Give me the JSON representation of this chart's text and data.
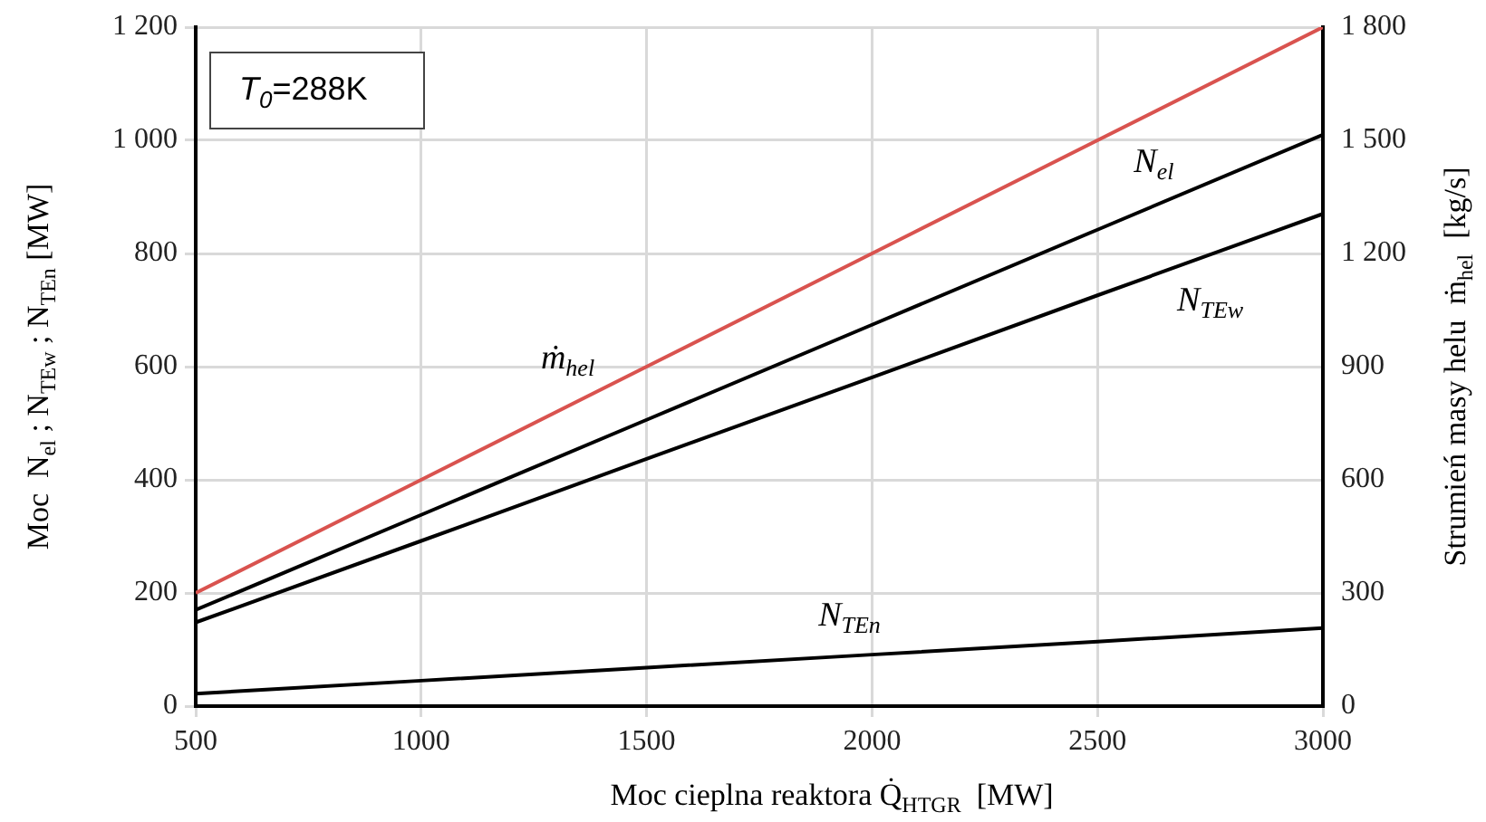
{
  "chart_data": {
    "type": "line",
    "xlabel": "Moc cieplna reaktora Q̇$_{HTGR}$  [MW]",
    "ylabel": "Moc  N$_{el}$ ; N$_{TEw}$ ; N$_{TEn}$ [MW]",
    "y2label": "Strumień masy helu  ṁ$_{hel}$  [kg/s]",
    "x": [
      500,
      1000,
      1500,
      2000,
      2500,
      3000
    ],
    "series": [
      {
        "name": "ṁ$_{hel}$",
        "color": "#d9534f",
        "axis": "y2",
        "values": [
          300,
          600,
          900,
          1200,
          1500,
          1800
        ]
      },
      {
        "name": "N$_{el}$",
        "color": "#000000",
        "values": [
          170,
          338,
          506,
          674,
          842,
          1010
        ]
      },
      {
        "name": "N$_{TEw}$",
        "color": "#000000",
        "values": [
          148,
          292,
          437,
          581,
          726,
          870
        ]
      },
      {
        "name": "N$_{TEn}$",
        "color": "#000000",
        "values": [
          22,
          45,
          68,
          91,
          114,
          138
        ]
      }
    ],
    "xlim": [
      500,
      3000
    ],
    "xticks": [
      500,
      1000,
      1500,
      2000,
      2500,
      3000
    ],
    "ylim": [
      0,
      1200
    ],
    "yticks": [
      0,
      200,
      400,
      600,
      800,
      {
        "value": 1000,
        "label": "1 000"
      },
      {
        "value": 1200,
        "label": "1 200"
      }
    ],
    "y2lim": [
      0,
      1800
    ],
    "y2ticks": [
      0,
      300,
      600,
      900,
      {
        "value": 1200,
        "label": "1 200"
      },
      {
        "value": 1500,
        "label": "1 500"
      },
      {
        "value": 1800,
        "label": "1 800"
      }
    ],
    "annotations": [
      "T$_{0}$=288K"
    ],
    "grid": true,
    "legend": false,
    "marker": "none",
    "line_style": "solid"
  }
}
